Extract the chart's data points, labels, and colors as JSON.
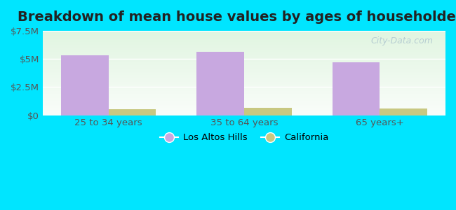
{
  "title": "Breakdown of mean house values by ages of householders",
  "categories": [
    "25 to 34 years",
    "35 to 64 years",
    "65 years+"
  ],
  "los_altos_hills": [
    5300000,
    5650000,
    4700000
  ],
  "california": [
    550000,
    650000,
    600000
  ],
  "ylim": [
    0,
    7500000
  ],
  "yticks": [
    0,
    2500000,
    5000000,
    7500000
  ],
  "ytick_labels": [
    "$0",
    "$2.5M",
    "$5M",
    "$7.5M"
  ],
  "bar_color_lah": "#c8a8e0",
  "bar_color_ca": "#c8c882",
  "background_outer": "#00e5ff",
  "legend_lah": "Los Altos Hills",
  "legend_ca": "California",
  "watermark": "City-Data.com",
  "bar_width": 0.35,
  "title_fontsize": 14,
  "tick_fontsize": 9.5,
  "legend_fontsize": 9.5
}
